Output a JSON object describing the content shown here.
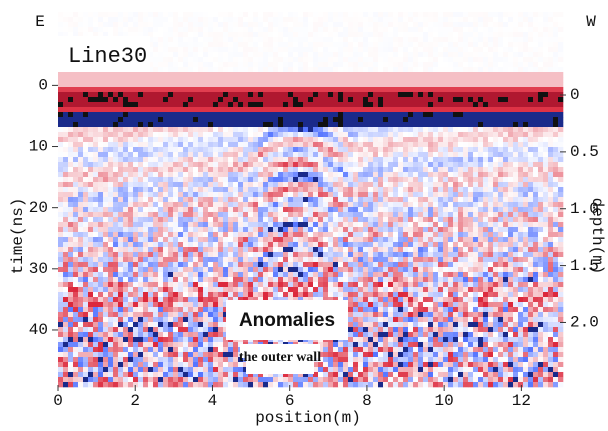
{
  "chart_data": {
    "type": "radargram",
    "title": "Line30",
    "xlabel": "position(m)",
    "ylabel": "time(ns)",
    "y2label": "depth(m)",
    "left_end": "E",
    "right_end": "W",
    "xlim": [
      0,
      13
    ],
    "xticks": [
      0,
      2,
      4,
      6,
      8,
      10,
      12
    ],
    "ylim": [
      -12,
      49
    ],
    "yticks": [
      0,
      10,
      20,
      30,
      40
    ],
    "y2lim": [
      -0.73,
      2.55
    ],
    "y2ticks": [
      0,
      0.5,
      {
        "value": 1,
        "label": "1.0"
      },
      1.5,
      {
        "value": 2,
        "label": "2.0"
      }
    ],
    "annotations": [
      "Anomalies",
      "the outer wall"
    ]
  }
}
